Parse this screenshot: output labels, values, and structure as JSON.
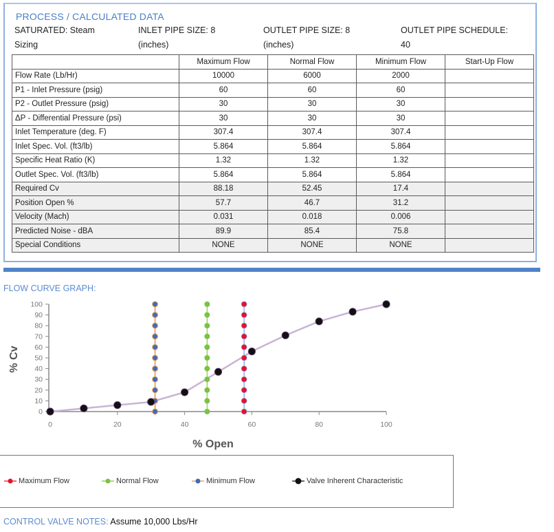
{
  "panel": {
    "title": "PROCESS / CALCULATED DATA",
    "meta": [
      {
        "line1": "SATURATED: Steam",
        "line2": "Sizing"
      },
      {
        "line1": "INLET PIPE SIZE: 8",
        "line2": "(inches)"
      },
      {
        "line1": "OUTLET PIPE SIZE: 8",
        "line2": "(inches)"
      },
      {
        "line1": "OUTLET PIPE SCHEDULE:",
        "line2": "40"
      }
    ]
  },
  "table": {
    "headers": [
      "",
      "Maximum Flow",
      "Normal Flow",
      "Minimum Flow",
      "Start-Up Flow"
    ],
    "rows": [
      {
        "label": "Flow Rate (Lb/Hr)",
        "values": [
          "10000",
          "6000",
          "2000",
          ""
        ]
      },
      {
        "label": "P1 - Inlet Pressure (psig)",
        "values": [
          "60",
          "60",
          "60",
          ""
        ]
      },
      {
        "label": "P2 - Outlet Pressure (psig)",
        "values": [
          "30",
          "30",
          "30",
          ""
        ]
      },
      {
        "label": "ΔP - Differential Pressure (psi)",
        "values": [
          "30",
          "30",
          "30",
          ""
        ]
      },
      {
        "label": "Inlet Temperature (deg. F)",
        "values": [
          "307.4",
          "307.4",
          "307.4",
          ""
        ]
      },
      {
        "label": "Inlet Spec. Vol. (ft3/lb)",
        "values": [
          "5.864",
          "5.864",
          "5.864",
          ""
        ]
      },
      {
        "label": "Specific Heat Ratio (K)",
        "values": [
          "1.32",
          "1.32",
          "1.32",
          ""
        ]
      },
      {
        "label": "Outlet Spec. Vol. (ft3/lb)",
        "values": [
          "5.864",
          "5.864",
          "5.864",
          ""
        ]
      },
      {
        "label": "Required Cv",
        "values": [
          "88.18",
          "52.45",
          "17.4",
          ""
        ]
      },
      {
        "label": "Position Open %",
        "values": [
          "57.7",
          "46.7",
          "31.2",
          ""
        ]
      },
      {
        "label": "Velocity (Mach)",
        "values": [
          "0.031",
          "0.018",
          "0.006",
          ""
        ]
      },
      {
        "label": "Predicted Noise - dBA",
        "values": [
          "89.9",
          "85.4",
          "75.8",
          ""
        ]
      },
      {
        "label": "Special Conditions",
        "values": [
          "NONE",
          "NONE",
          "NONE",
          ""
        ]
      }
    ]
  },
  "graph": {
    "title": "FLOW CURVE GRAPH:"
  },
  "notes": {
    "label": "CONTROL VALVE NOTES:",
    "text": "Assume 10,000 Lbs/Hr"
  },
  "colors": {
    "accent_blue": "#4a7fc8",
    "max_flow": "#e8102a",
    "normal_flow": "#7cc242",
    "min_flow": "#3d6bb5",
    "characteristic": "#111111",
    "curve_line": "#c9b3d6"
  },
  "chart_data": {
    "type": "scatter",
    "title": "FLOW CURVE GRAPH:",
    "xlabel": "% Open",
    "ylabel": "% Cv",
    "xlim": [
      0,
      100
    ],
    "ylim": [
      0,
      100
    ],
    "x_ticks": [
      0,
      20,
      40,
      60,
      80,
      100
    ],
    "y_ticks": [
      0,
      10,
      20,
      30,
      40,
      50,
      60,
      70,
      80,
      90,
      100
    ],
    "grid": false,
    "legend_position": "bottom",
    "series": [
      {
        "name": "Maximum Flow",
        "type": "vertical-marker-line",
        "x": 57.7,
        "y": [
          0,
          10,
          20,
          30,
          40,
          50,
          60,
          70,
          80,
          90,
          100
        ],
        "color": "#e8102a"
      },
      {
        "name": "Normal Flow",
        "type": "vertical-marker-line",
        "x": 46.7,
        "y": [
          0,
          10,
          20,
          30,
          40,
          50,
          60,
          70,
          80,
          90,
          100
        ],
        "color": "#7cc242"
      },
      {
        "name": "Minimum Flow",
        "type": "vertical-marker-line",
        "x": 31.2,
        "y": [
          0,
          10,
          20,
          30,
          40,
          50,
          60,
          70,
          80,
          90,
          100
        ],
        "color": "#3d6bb5"
      },
      {
        "name": "Valve Inherent Characteristic",
        "type": "line",
        "x": [
          0,
          10,
          20,
          30,
          40,
          50,
          60,
          70,
          80,
          90,
          100
        ],
        "y": [
          0,
          3,
          6,
          9,
          18,
          37,
          56,
          71,
          84,
          93,
          100
        ],
        "color": "#111111"
      }
    ]
  }
}
